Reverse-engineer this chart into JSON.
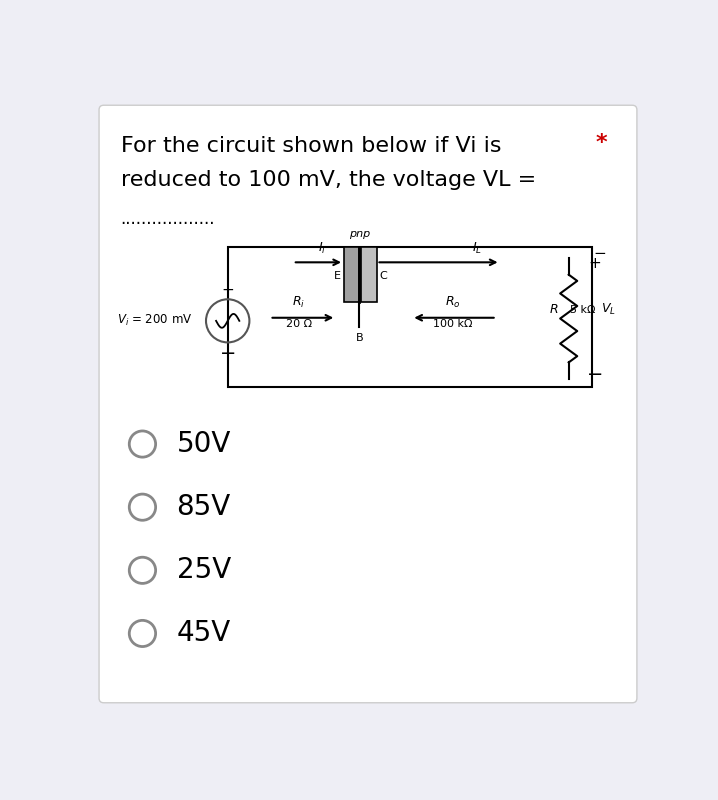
{
  "title_line1": "For the circuit shown below if Vi is",
  "title_line2": "reduced to 100 mV, the voltage VL =",
  "asterisk": "*",
  "dots": "..................",
  "options": [
    "50V",
    "85V",
    "25V",
    "45V"
  ],
  "bg_color": "#eeeef5",
  "card_color": "#ffffff",
  "text_color": "#000000",
  "asterisk_color": "#cc0000",
  "option_circle_color": "#888888",
  "circuit_line_color": "#000000",
  "transistor_left_color": "#a0a0a0",
  "transistor_right_color": "#c0c0c0"
}
